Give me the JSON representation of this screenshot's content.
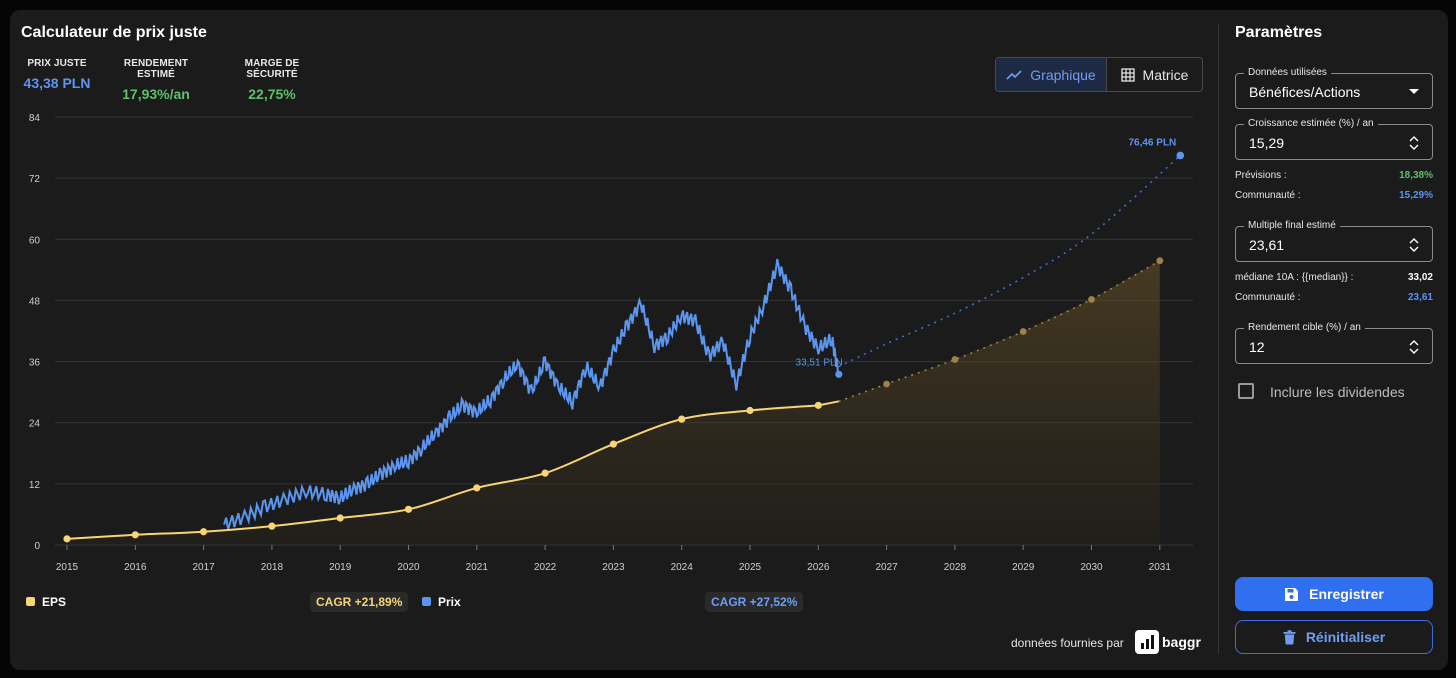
{
  "title": "Calculateur de prix juste",
  "metrics": {
    "fair_price": {
      "label": "PRIX JUSTE",
      "value": "43,38 PLN",
      "color": "#5b95ef"
    },
    "est_return": {
      "label": "RENDEMENT ESTIMÉ",
      "value": "17,93%/an",
      "color": "#5fbf6a"
    },
    "safety_margin": {
      "label": "MARGE DE SÉCURITÉ",
      "value": "22,75%",
      "color": "#5fbf6a"
    }
  },
  "view_toggle": {
    "chart_label": "Graphique",
    "matrix_label": "Matrice",
    "active": "chart"
  },
  "chart_data": {
    "type": "line",
    "x_ticks": [
      "2015",
      "2016",
      "2017",
      "2018",
      "2019",
      "2020",
      "2021",
      "2022",
      "2023",
      "2024",
      "2025",
      "2026",
      "2027",
      "2028",
      "2029",
      "2030",
      "2031"
    ],
    "y_ticks": [
      "0",
      "12",
      "24",
      "36",
      "48",
      "60",
      "72",
      "84"
    ],
    "ylim": [
      0,
      84
    ],
    "grid": true,
    "series": [
      {
        "name": "EPS",
        "color": "#f7d474",
        "x": [
          2015,
          2016,
          2017,
          2018,
          2019,
          2020,
          2021,
          2022,
          2023,
          2024,
          2025,
          2026
        ],
        "y": [
          1.2,
          2.0,
          2.6,
          3.7,
          5.3,
          7.0,
          11.2,
          14.1,
          19.8,
          24.7,
          26.4,
          27.4
        ]
      },
      {
        "name": "Prix",
        "color": "#5b95ef",
        "x": [
          2017.3,
          2017.6,
          2017.9,
          2018.2,
          2018.5,
          2018.8,
          2019.0,
          2019.2,
          2019.4,
          2019.6,
          2019.8,
          2020.0,
          2020.2,
          2020.4,
          2020.6,
          2020.8,
          2021.0,
          2021.2,
          2021.4,
          2021.6,
          2021.8,
          2022.0,
          2022.2,
          2022.4,
          2022.6,
          2022.8,
          2023.0,
          2023.2,
          2023.4,
          2023.6,
          2023.8,
          2024.0,
          2024.2,
          2024.4,
          2024.6,
          2024.8,
          2025.0,
          2025.2,
          2025.4,
          2025.6,
          2025.8,
          2026.0,
          2026.2,
          2026.3
        ],
        "y": [
          4.0,
          5.5,
          7.5,
          9.0,
          10.5,
          10.0,
          9.2,
          11.0,
          12.0,
          14.0,
          15.5,
          16.5,
          19.0,
          22.0,
          25.0,
          27.5,
          26.0,
          28.5,
          32.5,
          35.5,
          30.0,
          36.0,
          31.0,
          28.0,
          35.0,
          31.0,
          38.0,
          43.0,
          47.5,
          39.0,
          41.0,
          45.0,
          44.0,
          37.0,
          40.0,
          31.5,
          41.0,
          47.0,
          55.0,
          50.0,
          43.0,
          38.5,
          40.5,
          33.5
        ]
      },
      {
        "name": "EPS projection",
        "color": "#a0814a",
        "x": [
          2026.3,
          2027,
          2028,
          2029,
          2030,
          2031
        ],
        "y": [
          28.2,
          31.6,
          36.4,
          41.9,
          48.2,
          55.8
        ]
      },
      {
        "name": "Prix projection",
        "color": "#3f6fd0",
        "x": [
          2026.3,
          2027,
          2028,
          2029,
          2030,
          2031.3
        ],
        "y": [
          35.0,
          39.5,
          45.5,
          52.5,
          61.0,
          76.46
        ]
      }
    ],
    "annotations": {
      "current_price": "33,51 PLN",
      "target_price": "76,46 PLN"
    },
    "legend": {
      "eps": {
        "label": "EPS",
        "cagr": "CAGR +21,89%"
      },
      "price": {
        "label": "Prix",
        "cagr": "CAGR +27,52%"
      }
    }
  },
  "provider": {
    "text": "données fournies par",
    "brand": "baggr"
  },
  "params": {
    "title": "Paramètres",
    "data_used": {
      "label": "Données utilisées",
      "value": "Bénéfices/Actions"
    },
    "growth": {
      "label": "Croissance estimée (%) / an",
      "value": "15,29"
    },
    "forecast": {
      "label": "Prévisions :",
      "value": "18,38%",
      "color": "#5fbf6a"
    },
    "community_growth": {
      "label": "Communauté :",
      "value": "15,29%",
      "color": "#5b95ef"
    },
    "multiple": {
      "label": "Multiple final estimé",
      "value": "23,61"
    },
    "median": {
      "label": "médiane 10A : {{median}} :",
      "value": "33,02",
      "color": "#ffffff"
    },
    "community_multiple": {
      "label": "Communauté :",
      "value": "23,61",
      "color": "#5b95ef"
    },
    "target_return": {
      "label": "Rendement cible (%) / an",
      "value": "12"
    },
    "dividends_label": "Inclure les dividendes",
    "save_label": "Enregistrer",
    "reset_label": "Réinitialiser"
  }
}
